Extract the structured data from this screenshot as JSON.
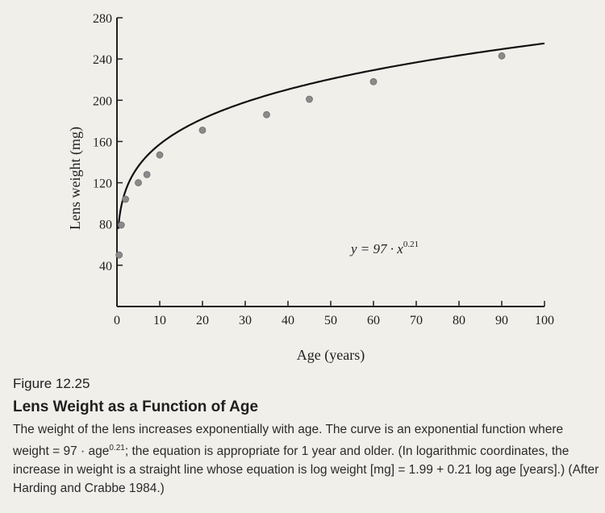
{
  "chart_data": {
    "type": "scatter",
    "xlabel": "Age (years)",
    "ylabel": "Lens weight (mg)",
    "xlim": [
      0,
      100
    ],
    "ylim": [
      0,
      280
    ],
    "x_ticks": [
      "0",
      "10",
      "20",
      "30",
      "40",
      "50",
      "60",
      "70",
      "80",
      "90",
      "100"
    ],
    "y_ticks": [
      "40",
      "80",
      "120",
      "160",
      "200",
      "240",
      "280"
    ],
    "points": [
      {
        "x": 0.5,
        "y": 50
      },
      {
        "x": 1,
        "y": 79
      },
      {
        "x": 2,
        "y": 104
      },
      {
        "x": 5,
        "y": 120
      },
      {
        "x": 7,
        "y": 128
      },
      {
        "x": 10,
        "y": 147
      },
      {
        "x": 20,
        "y": 171
      },
      {
        "x": 35,
        "y": 186
      },
      {
        "x": 45,
        "y": 201
      },
      {
        "x": 60,
        "y": 218
      },
      {
        "x": 90,
        "y": 243
      }
    ],
    "fit": {
      "a": 97,
      "b": 0.21,
      "x_start": 0.3
    },
    "equation": {
      "lhs": "y = 97 · x",
      "exp": "0.21"
    },
    "grid": false
  },
  "caption": {
    "figure_number": "Figure 12.25",
    "title": "Lens Weight as a Function of Age",
    "text_1": "The weight of the lens increases exponentially with age. The curve is an exponential function where weight = 97 · age",
    "text_exp": "0.21",
    "text_2": "; the equation is appropriate for 1 year and older. (In logarithmic coordinates, the increase in weight is a straight line whose equation is log weight [mg] = 1.99 + 0.21 log age [years].) (After Harding and Crabbe 1984.)"
  }
}
